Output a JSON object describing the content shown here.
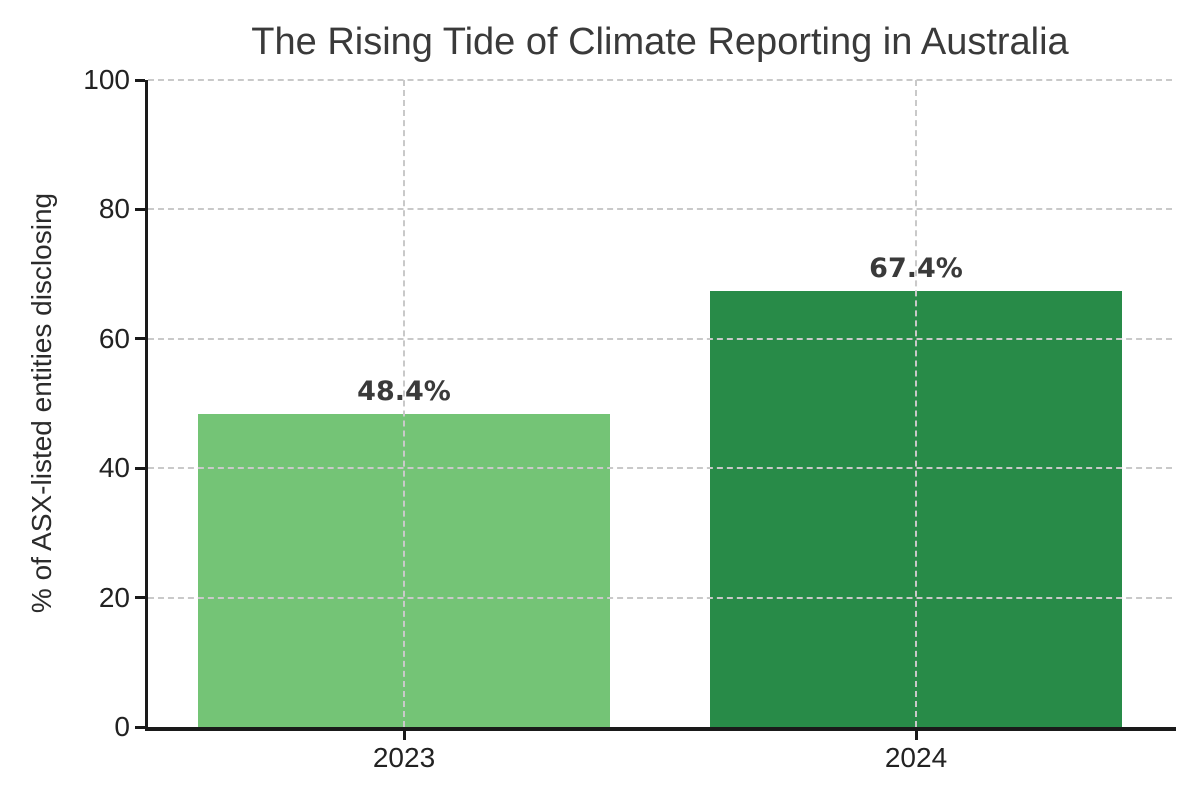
{
  "chart_data": {
    "type": "bar",
    "title": "The Rising Tide of Climate Reporting in Australia",
    "xlabel": "",
    "ylabel": "% of ASX-listed entities disclosing",
    "categories": [
      "2023",
      "2024"
    ],
    "values": [
      48.4,
      67.4
    ],
    "value_labels": [
      "48.4%",
      "67.4%"
    ],
    "bar_colors": [
      "#74c476",
      "#288b48"
    ],
    "ylim": [
      0,
      100
    ],
    "yticks": [
      0,
      20,
      40,
      60,
      80,
      100
    ],
    "grid": {
      "horizontal": true,
      "vertical": true,
      "style": "dashed",
      "color": "#c9c9c9"
    },
    "legend_position": "none",
    "colors": {
      "spine": "#1a1a1a",
      "title_text": "#3a3a3a",
      "tick_text": "#222222",
      "background": "#ffffff"
    }
  }
}
